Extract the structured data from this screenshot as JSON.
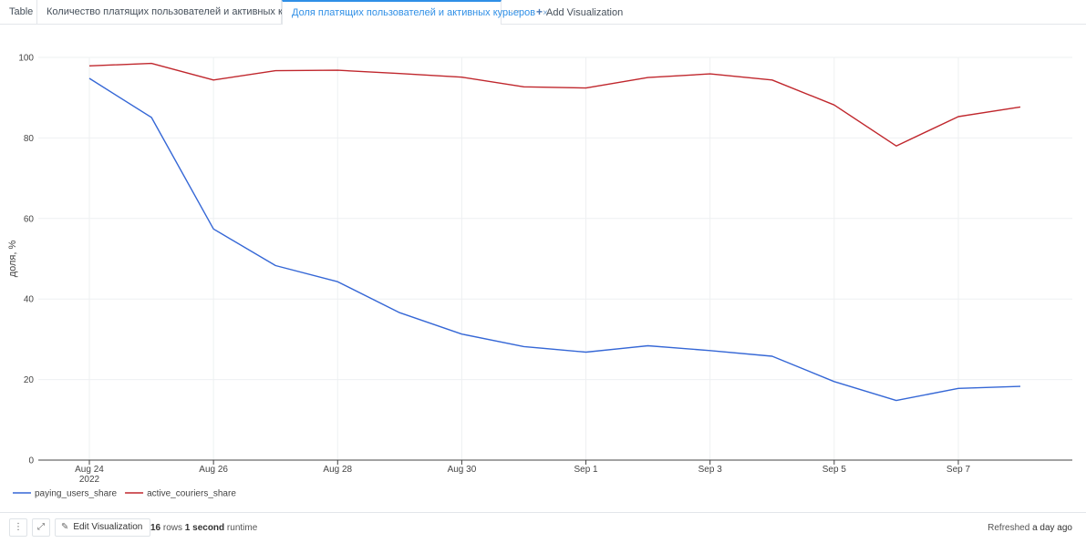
{
  "tabs": [
    {
      "label": "Table",
      "closable": false,
      "active": false
    },
    {
      "label": "Количество платящих пользователей и активных курьеров",
      "closable": true,
      "active": false
    },
    {
      "label": "Доля платящих пользователей и активных курьеров",
      "closable": true,
      "active": true
    }
  ],
  "tab_close_glyph": "×",
  "more_glyph": "···",
  "add_visualization": {
    "icon": "plus-icon",
    "label": "Add Visualization"
  },
  "colors": {
    "accent": "#2f8fe6",
    "series_blue": "#3567d6",
    "series_red": "#c0272d",
    "grid": "#eef0f2"
  },
  "chart_data": {
    "type": "line",
    "ylabel": "доля, %",
    "xlabel": "",
    "ylim": [
      0,
      100
    ],
    "yticks": [
      0,
      20,
      40,
      60,
      80,
      100
    ],
    "x": [
      "2022-08-24",
      "2022-08-25",
      "2022-08-26",
      "2022-08-27",
      "2022-08-28",
      "2022-08-29",
      "2022-08-30",
      "2022-08-31",
      "2022-09-01",
      "2022-09-02",
      "2022-09-03",
      "2022-09-04",
      "2022-09-05",
      "2022-09-06",
      "2022-09-07",
      "2022-09-08"
    ],
    "xticks": [
      {
        "index": 0,
        "label": "Aug 24",
        "sublabel": "2022"
      },
      {
        "index": 2,
        "label": "Aug 26",
        "sublabel": ""
      },
      {
        "index": 4,
        "label": "Aug 28",
        "sublabel": ""
      },
      {
        "index": 6,
        "label": "Aug 30",
        "sublabel": ""
      },
      {
        "index": 8,
        "label": "Sep 1",
        "sublabel": ""
      },
      {
        "index": 10,
        "label": "Sep 3",
        "sublabel": ""
      },
      {
        "index": 12,
        "label": "Sep 5",
        "sublabel": ""
      },
      {
        "index": 14,
        "label": "Sep 7",
        "sublabel": ""
      }
    ],
    "series": [
      {
        "name": "paying_users_share",
        "color": "#3567d6",
        "values": [
          94.8,
          85.1,
          57.4,
          48.3,
          44.3,
          36.6,
          31.3,
          28.2,
          26.8,
          28.4,
          27.2,
          25.8,
          19.5,
          14.8,
          17.8,
          18.3
        ]
      },
      {
        "name": "active_couriers_share",
        "color": "#c0272d",
        "values": [
          97.9,
          98.5,
          94.4,
          96.7,
          96.8,
          96.0,
          95.1,
          92.7,
          92.4,
          95.0,
          95.9,
          94.4,
          88.2,
          78.0,
          85.3,
          87.7
        ]
      }
    ],
    "grid": true,
    "legend": "bottom-left"
  },
  "footer": {
    "menu_icon": "kebab-menu-icon",
    "expand_icon": "expand-icon",
    "edit_icon": "pencil-icon",
    "edit_label": "Edit Visualization",
    "rows_count": "16",
    "rows_label": " rows ",
    "runtime_value": "1 second",
    "runtime_label": " runtime",
    "refreshed_label": "Refreshed ",
    "refreshed_value": "a day ago"
  }
}
